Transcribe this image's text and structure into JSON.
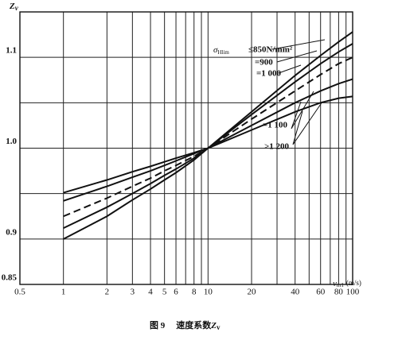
{
  "chart_data": {
    "type": "line",
    "y_label": "Z",
    "y_label_sub": "v",
    "x_label": "v",
    "x_label_sub": "m1",
    "x_label_unit": "(m/s)",
    "caption": {
      "prefix": "图 9",
      "text": "速度系数",
      "symbol": "Z",
      "sub": "v"
    },
    "log_x": true,
    "xlim": [
      0.5,
      100
    ],
    "xticks": [
      0.5,
      1,
      2,
      3,
      4,
      5,
      6,
      8,
      10,
      20,
      40,
      60,
      80,
      100
    ],
    "minor_xticks": [
      7,
      9,
      30,
      50,
      70,
      90
    ],
    "ylim": [
      0.85,
      1.15
    ],
    "yticks": [
      0.85,
      0.9,
      {
        "value": 1.0,
        "label": "1.0"
      },
      1.1
    ],
    "minor_yticks": [
      0.95,
      1.05
    ],
    "legend_symbol": "σ",
    "legend_subscript": "Hlim",
    "x": [
      1,
      2,
      3,
      4,
      5,
      6,
      8,
      10,
      20,
      40,
      60,
      80,
      100
    ],
    "series": [
      {
        "name": "≤850N/mm²",
        "color": "#111111",
        "dashed": false,
        "values": [
          0.9,
          0.925,
          0.943,
          0.955,
          0.965,
          0.973,
          0.987,
          1.0,
          1.04,
          1.08,
          1.102,
          1.117,
          1.128
        ]
      },
      {
        "name": "=900",
        "color": "#111111",
        "dashed": false,
        "values": [
          0.912,
          0.935,
          0.95,
          0.961,
          0.97,
          0.977,
          0.989,
          1.0,
          1.037,
          1.073,
          1.093,
          1.106,
          1.115
        ]
      },
      {
        "name": "=1 000",
        "color": "#111111",
        "dashed": true,
        "values": [
          0.925,
          0.945,
          0.958,
          0.967,
          0.975,
          0.981,
          0.991,
          1.0,
          1.032,
          1.063,
          1.081,
          1.093,
          1.1
        ]
      },
      {
        "name": "=1 100",
        "color": "#111111",
        "dashed": false,
        "values": [
          0.942,
          0.958,
          0.968,
          0.975,
          0.981,
          0.986,
          0.994,
          1.0,
          1.025,
          1.05,
          1.063,
          1.071,
          1.076
        ]
      },
      {
        "name": ">1 200",
        "color": "#111111",
        "dashed": false,
        "values": [
          0.951,
          0.965,
          0.974,
          0.98,
          0.985,
          0.989,
          0.995,
          1.0,
          1.02,
          1.04,
          1.05,
          1.055,
          1.057
        ]
      }
    ]
  }
}
